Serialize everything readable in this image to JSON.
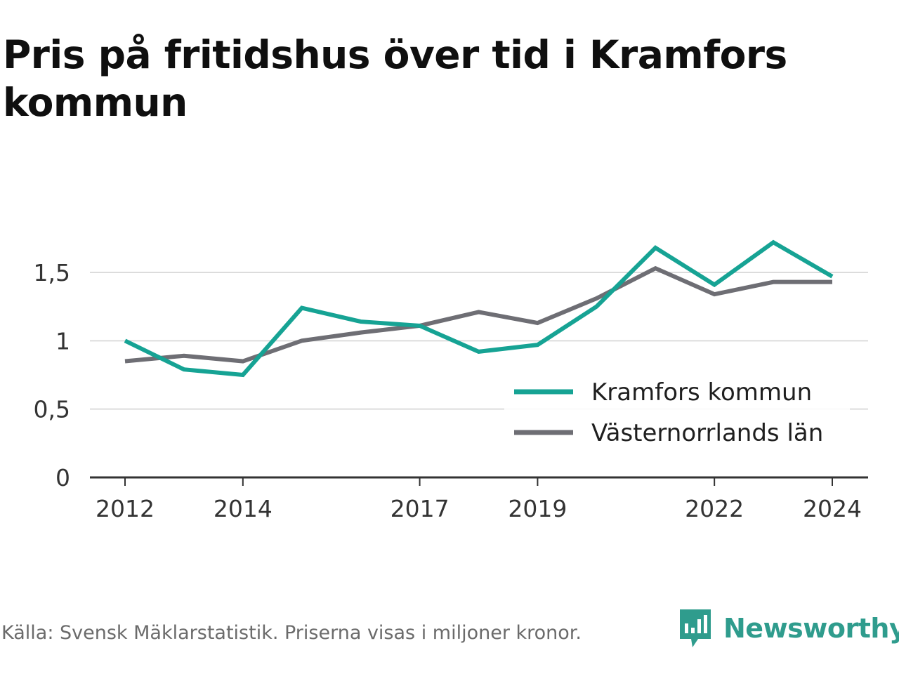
{
  "title": "Pris på fritidshus över tid i Kramfors kommun",
  "source_note": "Källa: Svensk Mäklarstatistik. Priserna visas i miljoner kronor.",
  "brand": {
    "name": "Newsworthy",
    "icon": "newsworthy-logo-icon",
    "color": "#2f9c8d"
  },
  "chart_data": {
    "type": "line",
    "title": "Pris på fritidshus över tid i Kramfors kommun",
    "xlabel": "",
    "ylabel": "",
    "x": [
      2012,
      2013,
      2014,
      2015,
      2016,
      2017,
      2018,
      2019,
      2020,
      2021,
      2022,
      2023,
      2024
    ],
    "x_ticks": [
      "2012",
      "2014",
      "2017",
      "2019",
      "2022",
      "2024"
    ],
    "y_ticks": [
      "0",
      "0,5",
      "1",
      "1,5"
    ],
    "ylim": [
      0,
      1.85
    ],
    "grid": true,
    "legend_position": "bottom-right",
    "series": [
      {
        "name": "Kramfors kommun",
        "color": "#16a394",
        "values": [
          1.0,
          0.79,
          0.75,
          1.24,
          1.14,
          1.11,
          0.92,
          0.97,
          1.25,
          1.68,
          1.41,
          1.72,
          1.47
        ]
      },
      {
        "name": "Västernorrlands län",
        "color": "#6e6e74",
        "values": [
          0.85,
          0.89,
          0.85,
          1.0,
          1.06,
          1.11,
          1.21,
          1.13,
          1.31,
          1.53,
          1.34,
          1.43,
          1.43
        ]
      }
    ]
  }
}
